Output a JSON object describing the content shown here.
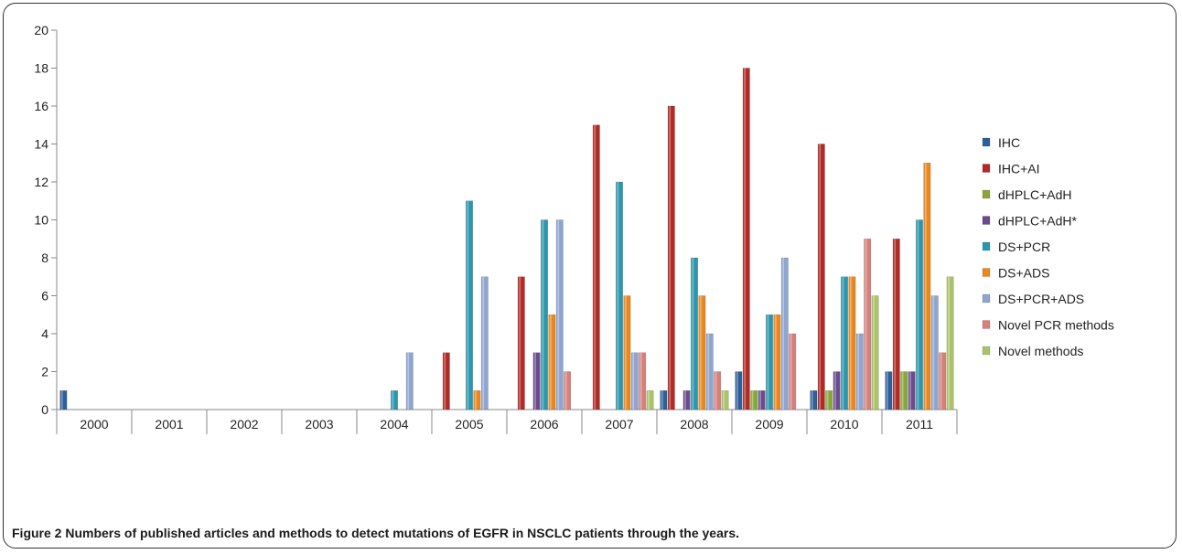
{
  "chart_data": {
    "type": "bar",
    "title": "",
    "xlabel": "",
    "ylabel": "",
    "ylim": [
      0,
      20
    ],
    "yticks": [
      0,
      2,
      4,
      6,
      8,
      10,
      12,
      14,
      16,
      18,
      20
    ],
    "grid": false,
    "legend_position": "right",
    "categories": [
      "2000",
      "2001",
      "2002",
      "2003",
      "2004",
      "2005",
      "2006",
      "2007",
      "2008",
      "2009",
      "2010",
      "2011"
    ],
    "series": [
      {
        "name": "IHC",
        "color": "#2f5f9a",
        "values": [
          1,
          0,
          0,
          0,
          0,
          0,
          0,
          0,
          1,
          2,
          1,
          2
        ]
      },
      {
        "name": "IHC+AI",
        "color": "#b22a26",
        "values": [
          0,
          0,
          0,
          0,
          0,
          3,
          7,
          15,
          16,
          18,
          14,
          9
        ]
      },
      {
        "name": "dHPLC+AdH",
        "color": "#86a83a",
        "values": [
          0,
          0,
          0,
          0,
          0,
          0,
          0,
          0,
          0,
          1,
          1,
          2
        ]
      },
      {
        "name": "dHPLC+AdH*",
        "color": "#6b4a8e",
        "values": [
          0,
          0,
          0,
          0,
          0,
          0,
          3,
          0,
          1,
          1,
          2,
          2
        ]
      },
      {
        "name": "DS+PCR",
        "color": "#2a97ad",
        "values": [
          0,
          0,
          0,
          0,
          1,
          11,
          10,
          12,
          8,
          5,
          7,
          10
        ]
      },
      {
        "name": "DS+ADS",
        "color": "#e98720",
        "values": [
          0,
          0,
          0,
          0,
          0,
          1,
          5,
          6,
          6,
          5,
          7,
          13
        ]
      },
      {
        "name": "DS+PCR+ADS",
        "color": "#8ea5d0",
        "values": [
          0,
          0,
          0,
          0,
          3,
          7,
          10,
          3,
          4,
          8,
          4,
          6
        ]
      },
      {
        "name": "Novel PCR methods",
        "color": "#d6807c",
        "values": [
          0,
          0,
          0,
          0,
          0,
          0,
          2,
          3,
          2,
          4,
          9,
          3
        ]
      },
      {
        "name": "Novel methods",
        "color": "#aac36a",
        "values": [
          0,
          0,
          0,
          0,
          0,
          0,
          0,
          1,
          1,
          0,
          6,
          7
        ]
      }
    ]
  },
  "caption": {
    "label": "Figure 2",
    "text": "Numbers of published articles and methods to detect mutations of EGFR in NSCLC patients through the years."
  }
}
